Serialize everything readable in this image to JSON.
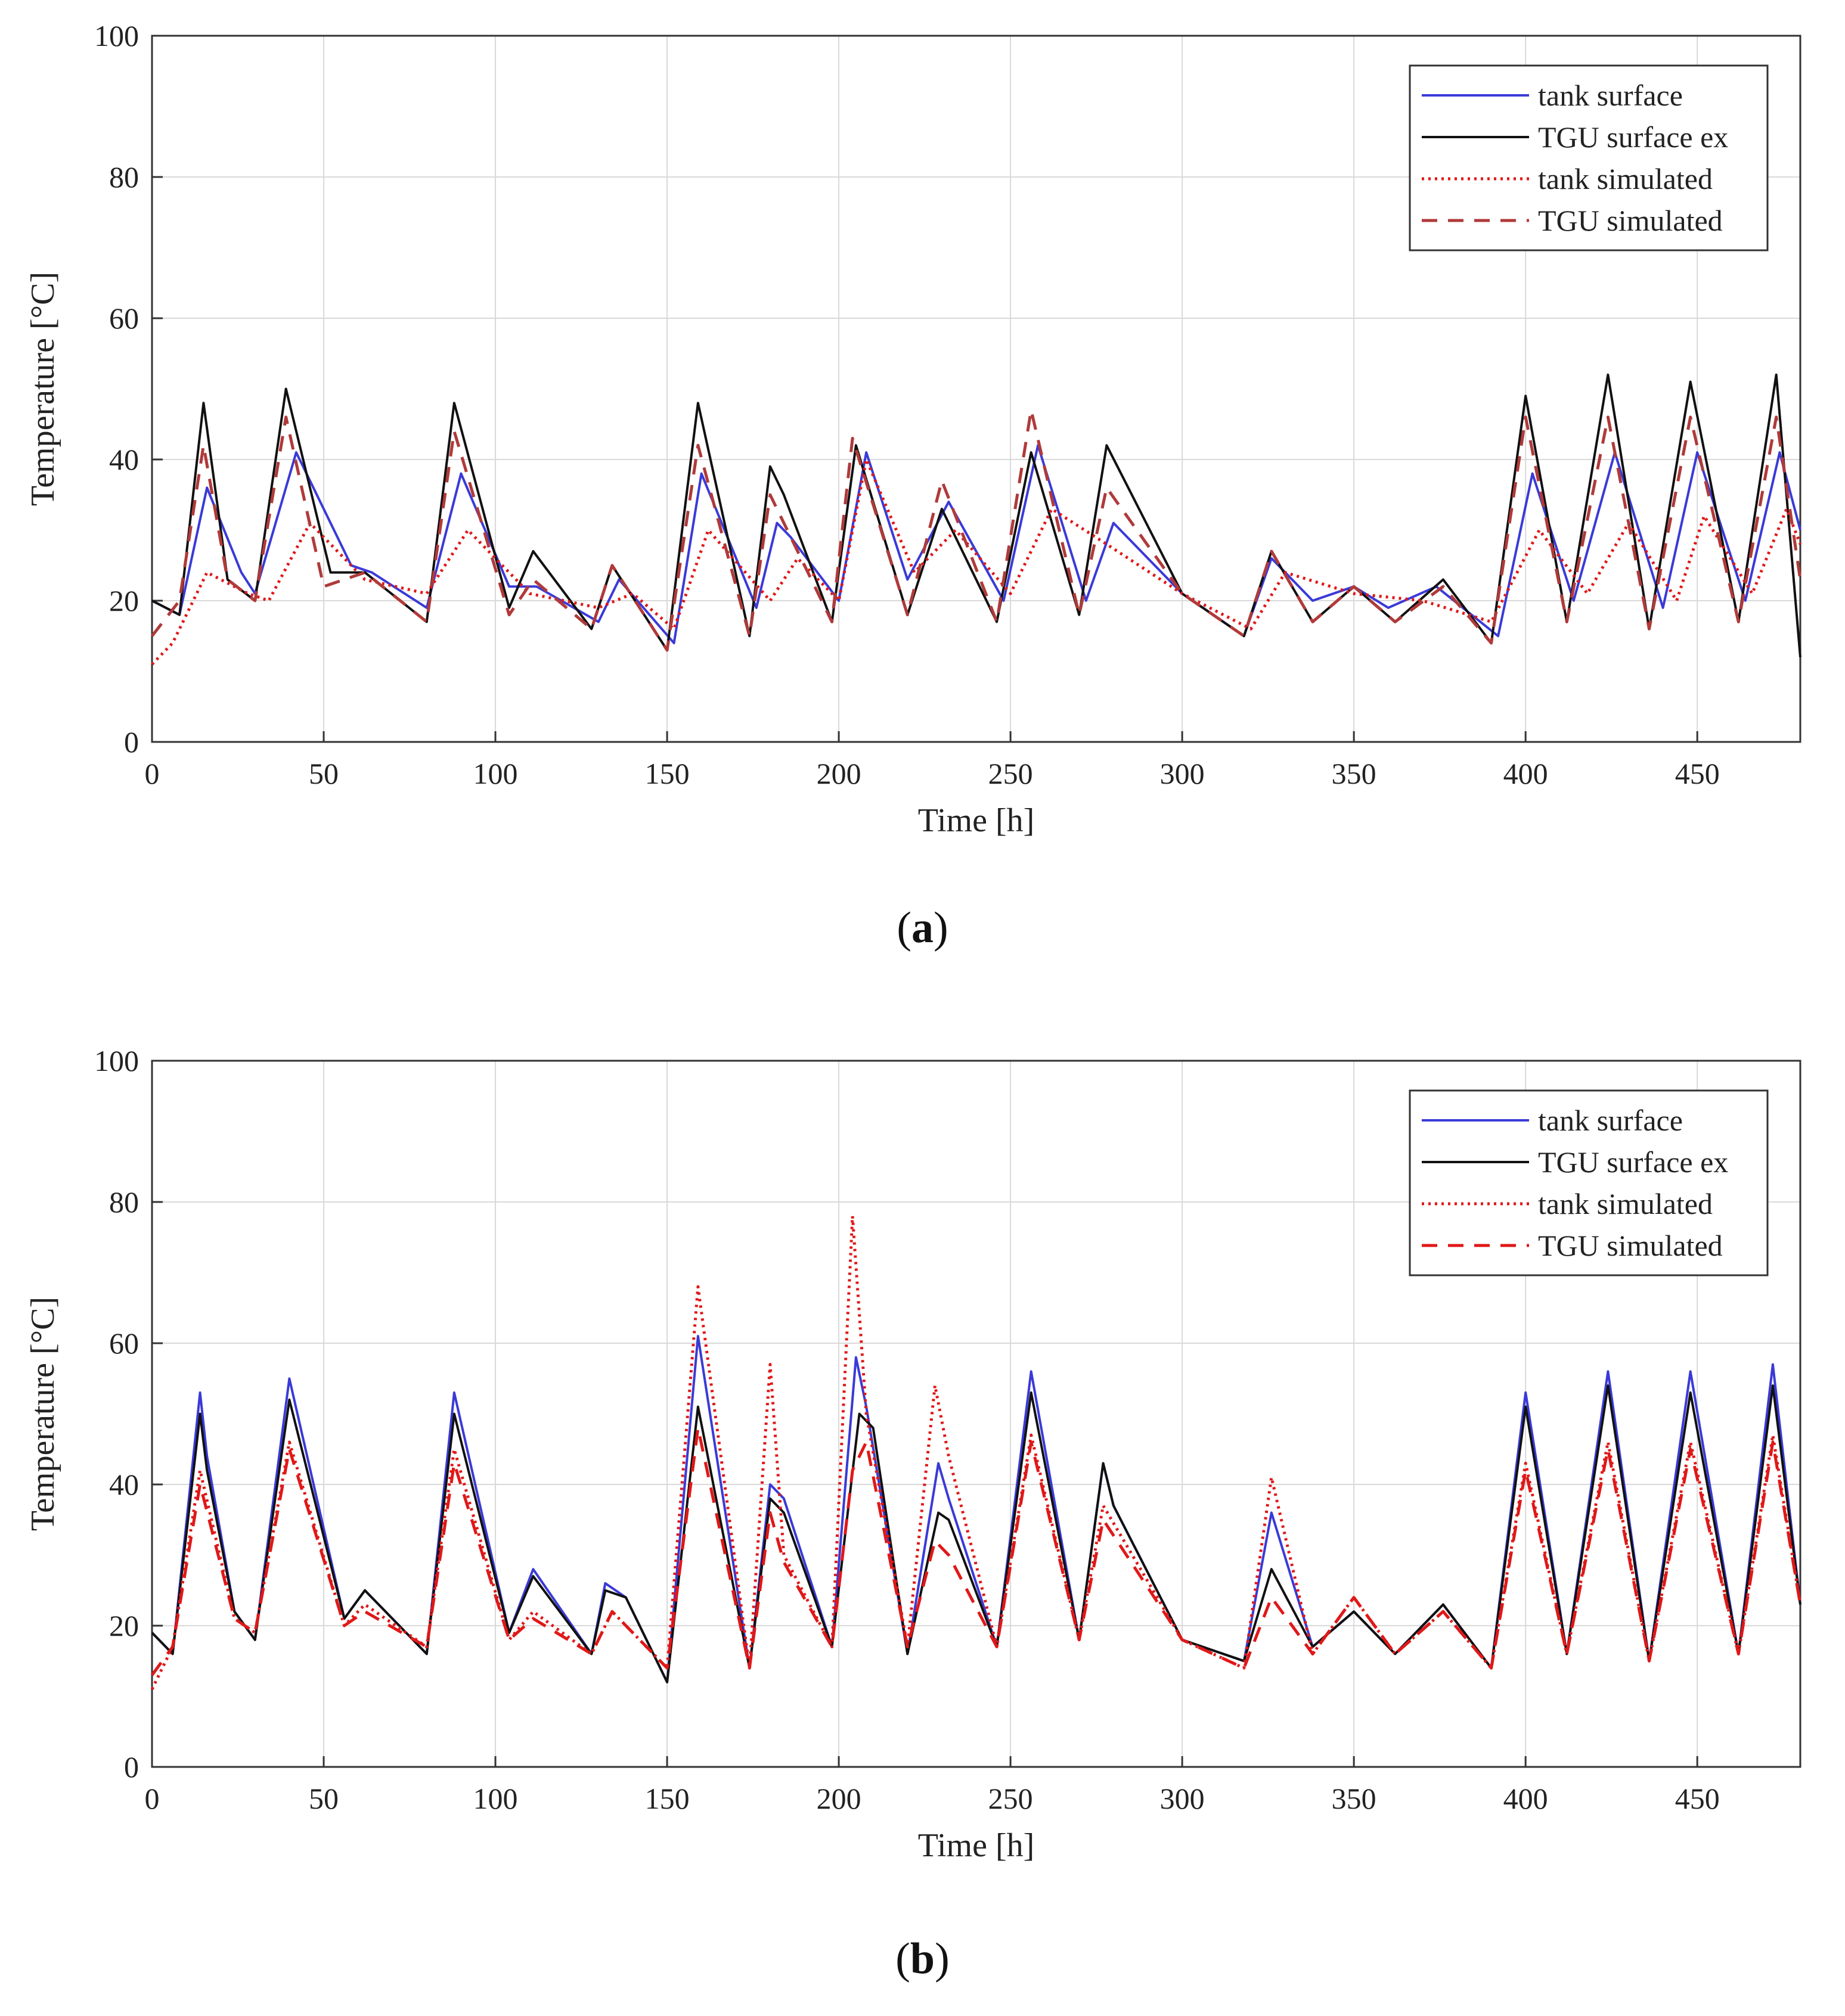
{
  "figure": {
    "captions": [
      "(a)",
      "(b)"
    ]
  },
  "colors": {
    "tank_surface": "#3a3ad8",
    "tgu_surface_ex": "#111111",
    "tank_simulated": "#e01818",
    "tgu_simulated_a": "#b03a3a",
    "tgu_simulated_b": "#e01818",
    "grid": "#d9d9d9",
    "axis": "#333333"
  },
  "chart_data": [
    {
      "type": "line",
      "panel": "a",
      "caption_letter": "a",
      "xlabel": "Time [h]",
      "ylabel": "Temperature [°C]",
      "xlim": [
        0,
        480
      ],
      "ylim": [
        0,
        100
      ],
      "xticks": [
        "0",
        "50",
        "100",
        "150",
        "200",
        "250",
        "300",
        "350",
        "400",
        "450"
      ],
      "yticks": [
        "0",
        "20",
        "40",
        "60",
        "80",
        "100"
      ],
      "grid": true,
      "legend_position": "top-right",
      "series": [
        {
          "name": "tank surface",
          "style": "solid",
          "color_key": "tank_surface",
          "x": [
            0,
            8,
            16,
            26,
            30,
            42,
            58,
            64,
            80,
            90,
            104,
            112,
            130,
            136,
            152,
            160,
            176,
            182,
            186,
            200,
            208,
            220,
            232,
            248,
            258,
            272,
            280,
            300,
            318,
            326,
            338,
            350,
            360,
            374,
            392,
            402,
            414,
            426,
            440,
            450,
            464,
            474,
            480
          ],
          "y": [
            20,
            18,
            36,
            24,
            21,
            41,
            25,
            24,
            19,
            38,
            22,
            22,
            17,
            23,
            14,
            38,
            19,
            31,
            29,
            20,
            41,
            23,
            34,
            20,
            42,
            20,
            31,
            21,
            15,
            26,
            20,
            22,
            19,
            22,
            15,
            38,
            20,
            41,
            19,
            41,
            20,
            41,
            30
          ]
        },
        {
          "name": "TGU surface ex",
          "style": "solid",
          "color_key": "tgu_surface_ex",
          "x": [
            0,
            8,
            15,
            22,
            30,
            39,
            52,
            62,
            80,
            88,
            104,
            111,
            128,
            134,
            150,
            159,
            174,
            180,
            184,
            198,
            205,
            220,
            230,
            246,
            256,
            270,
            278,
            300,
            318,
            326,
            338,
            350,
            362,
            376,
            390,
            400,
            412,
            424,
            436,
            448,
            462,
            473,
            480
          ],
          "y": [
            20,
            18,
            48,
            23,
            20,
            50,
            24,
            24,
            17,
            48,
            19,
            27,
            16,
            25,
            13,
            48,
            15,
            39,
            35,
            17,
            42,
            18,
            33,
            17,
            41,
            18,
            42,
            21,
            15,
            27,
            17,
            22,
            17,
            23,
            14,
            49,
            17,
            52,
            16,
            51,
            17,
            52,
            12
          ]
        },
        {
          "name": "tank simulated",
          "style": "dotted",
          "color_key": "tank_simulated",
          "x": [
            0,
            6,
            16,
            28,
            34,
            46,
            62,
            80,
            92,
            110,
            130,
            140,
            152,
            162,
            180,
            188,
            200,
            208,
            222,
            234,
            250,
            262,
            278,
            300,
            320,
            330,
            350,
            370,
            390,
            404,
            418,
            430,
            444,
            452,
            466,
            476,
            480
          ],
          "y": [
            11,
            14,
            24,
            21,
            20,
            31,
            23,
            21,
            30,
            21,
            19,
            21,
            16,
            30,
            20,
            26,
            20,
            40,
            24,
            30,
            21,
            33,
            28,
            21,
            16,
            24,
            21,
            20,
            17,
            30,
            21,
            31,
            20,
            32,
            21,
            33,
            28
          ]
        },
        {
          "name": "TGU simulated",
          "style": "dashed",
          "color_key": "tgu_simulated_a",
          "x": [
            0,
            8,
            15,
            22,
            30,
            39,
            50,
            62,
            80,
            88,
            104,
            111,
            128,
            134,
            150,
            159,
            174,
            180,
            184,
            198,
            204,
            220,
            230,
            246,
            256,
            270,
            278,
            300,
            318,
            326,
            338,
            350,
            362,
            376,
            390,
            400,
            412,
            424,
            436,
            448,
            462,
            473,
            480
          ],
          "y": [
            15,
            20,
            42,
            23,
            20,
            46,
            22,
            24,
            17,
            44,
            18,
            23,
            16,
            25,
            13,
            42,
            15,
            35,
            31,
            17,
            43,
            18,
            37,
            17,
            47,
            18,
            36,
            21,
            15,
            27,
            17,
            22,
            17,
            22,
            14,
            46,
            17,
            46,
            16,
            46,
            17,
            46,
            23
          ]
        }
      ]
    },
    {
      "type": "line",
      "panel": "b",
      "caption_letter": "b",
      "xlabel": "Time [h]",
      "ylabel": "Temperature [°C]",
      "xlim": [
        0,
        480
      ],
      "ylim": [
        0,
        100
      ],
      "xticks": [
        "0",
        "50",
        "100",
        "150",
        "200",
        "250",
        "300",
        "350",
        "400",
        "450"
      ],
      "yticks": [
        "0",
        "20",
        "40",
        "60",
        "80",
        "100"
      ],
      "grid": true,
      "legend_position": "top-right",
      "series": [
        {
          "name": "tank surface",
          "style": "solid",
          "color_key": "tank_surface",
          "x": [
            0,
            6,
            14,
            16,
            24,
            30,
            40,
            56,
            62,
            66,
            80,
            88,
            104,
            111,
            128,
            132,
            138,
            150,
            159,
            174,
            180,
            184,
            198,
            205,
            208,
            220,
            229,
            232,
            246,
            256,
            270,
            277,
            280,
            300,
            318,
            326,
            338,
            350,
            362,
            376,
            390,
            400,
            412,
            424,
            436,
            448,
            462,
            472,
            480
          ],
          "y": [
            19,
            16,
            53,
            44,
            22,
            18,
            55,
            21,
            25,
            23,
            16,
            53,
            19,
            28,
            16,
            26,
            24,
            12,
            61,
            14,
            40,
            38,
            17,
            58,
            51,
            16,
            43,
            38,
            17,
            56,
            18,
            43,
            37,
            18,
            15,
            36,
            17,
            22,
            16,
            23,
            14,
            53,
            16,
            56,
            15,
            56,
            16,
            57,
            23
          ]
        },
        {
          "name": "TGU surface ex",
          "style": "solid",
          "color_key": "tgu_surface_ex",
          "x": [
            0,
            6,
            14,
            16,
            24,
            30,
            40,
            56,
            62,
            66,
            80,
            88,
            104,
            111,
            128,
            132,
            138,
            150,
            159,
            174,
            180,
            184,
            198,
            206,
            210,
            220,
            229,
            232,
            246,
            256,
            270,
            277,
            280,
            300,
            318,
            326,
            338,
            350,
            362,
            376,
            390,
            400,
            412,
            424,
            436,
            448,
            462,
            472,
            480
          ],
          "y": [
            19,
            16,
            50,
            42,
            22,
            18,
            52,
            21,
            25,
            23,
            16,
            50,
            19,
            27,
            16,
            25,
            24,
            12,
            51,
            14,
            38,
            36,
            17,
            50,
            48,
            16,
            36,
            35,
            17,
            53,
            18,
            43,
            37,
            18,
            15,
            28,
            17,
            22,
            16,
            23,
            14,
            51,
            16,
            54,
            15,
            53,
            16,
            54,
            23
          ]
        },
        {
          "name": "tank simulated",
          "style": "dotted",
          "color_key": "tank_simulated",
          "x": [
            0,
            6,
            14,
            24,
            30,
            40,
            56,
            62,
            80,
            88,
            104,
            111,
            128,
            134,
            150,
            159,
            174,
            180,
            184,
            198,
            204,
            208,
            220,
            228,
            232,
            246,
            256,
            270,
            277,
            300,
            318,
            326,
            338,
            350,
            362,
            376,
            390,
            400,
            412,
            424,
            436,
            448,
            462,
            472,
            480
          ],
          "y": [
            11,
            17,
            42,
            21,
            19,
            46,
            20,
            23,
            17,
            45,
            18,
            22,
            16,
            22,
            14,
            68,
            14,
            57,
            30,
            17,
            78,
            50,
            17,
            54,
            44,
            17,
            47,
            18,
            37,
            18,
            14,
            41,
            16,
            24,
            16,
            22,
            14,
            43,
            16,
            46,
            15,
            46,
            16,
            47,
            23
          ]
        },
        {
          "name": "TGU simulated",
          "style": "dashed",
          "color_key": "tgu_simulated_b",
          "x": [
            0,
            6,
            14,
            24,
            30,
            40,
            56,
            62,
            80,
            88,
            104,
            111,
            128,
            134,
            150,
            159,
            174,
            180,
            184,
            198,
            204,
            208,
            220,
            228,
            232,
            246,
            256,
            270,
            277,
            300,
            318,
            326,
            338,
            350,
            362,
            376,
            390,
            400,
            412,
            424,
            436,
            448,
            462,
            472,
            480
          ],
          "y": [
            13,
            17,
            40,
            21,
            19,
            45,
            20,
            22,
            17,
            43,
            18,
            21,
            16,
            22,
            14,
            48,
            14,
            36,
            29,
            17,
            42,
            46,
            17,
            32,
            30,
            17,
            46,
            18,
            35,
            18,
            14,
            24,
            16,
            24,
            16,
            22,
            14,
            42,
            16,
            45,
            15,
            45,
            16,
            46,
            23
          ]
        }
      ]
    }
  ]
}
